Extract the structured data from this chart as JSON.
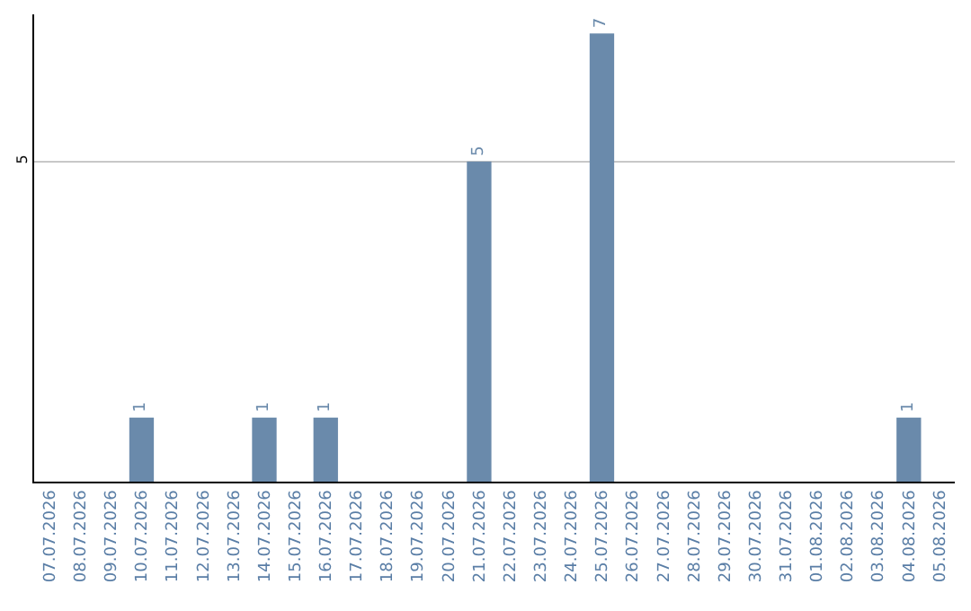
{
  "chart_data": {
    "type": "bar",
    "categories": [
      "07.07.2026",
      "08.07.2026",
      "09.07.2026",
      "10.07.2026",
      "11.07.2026",
      "12.07.2026",
      "13.07.2026",
      "14.07.2026",
      "15.07.2026",
      "16.07.2026",
      "17.07.2026",
      "18.07.2026",
      "19.07.2026",
      "20.07.2026",
      "21.07.2026",
      "22.07.2026",
      "23.07.2026",
      "24.07.2026",
      "25.07.2026",
      "26.07.2026",
      "27.07.2026",
      "28.07.2026",
      "29.07.2026",
      "30.07.2026",
      "31.07.2026",
      "01.08.2026",
      "02.08.2026",
      "03.08.2026",
      "04.08.2026",
      "05.08.2026"
    ],
    "values": [
      null,
      null,
      null,
      1,
      null,
      null,
      null,
      1,
      null,
      1,
      null,
      null,
      null,
      null,
      5,
      null,
      null,
      null,
      7,
      null,
      null,
      null,
      null,
      null,
      null,
      null,
      null,
      null,
      1,
      null
    ],
    "value_labels": [
      null,
      null,
      null,
      "1",
      null,
      null,
      null,
      "1",
      null,
      "1",
      null,
      null,
      null,
      null,
      "5",
      null,
      null,
      null,
      "7",
      null,
      null,
      null,
      null,
      null,
      null,
      null,
      null,
      null,
      "1",
      null
    ],
    "color": "#6a8aab",
    "ylim": [
      0,
      7.3
    ],
    "yticks": [
      5
    ],
    "grid": "y",
    "legend": false
  }
}
